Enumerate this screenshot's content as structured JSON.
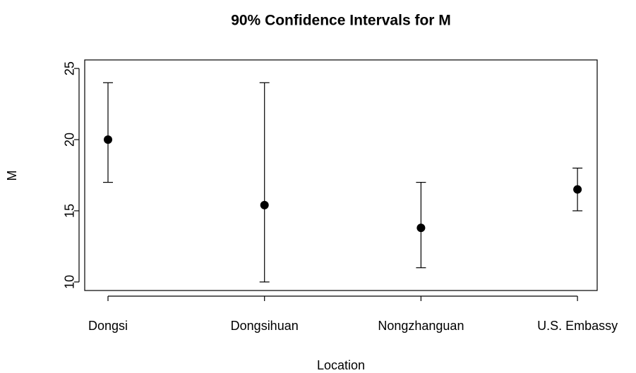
{
  "chart_data": {
    "type": "errorbar",
    "title": "90% Confidence Intervals for M",
    "x_label": "Location",
    "y_label": "M",
    "categories": [
      "Dongsi",
      "Dongsihuan",
      "Nongzhanguan",
      "U.S. Embassy"
    ],
    "series": [
      {
        "name": "M",
        "color": "#000000",
        "values": [
          20,
          15.4,
          13.8,
          16.5
        ],
        "lower": [
          17,
          10,
          11,
          15
        ],
        "upper": [
          24,
          24,
          17,
          18
        ]
      }
    ],
    "ylim": [
      9.4,
      25.6
    ],
    "yticks": [
      10,
      15,
      20,
      25
    ],
    "grid": false
  }
}
